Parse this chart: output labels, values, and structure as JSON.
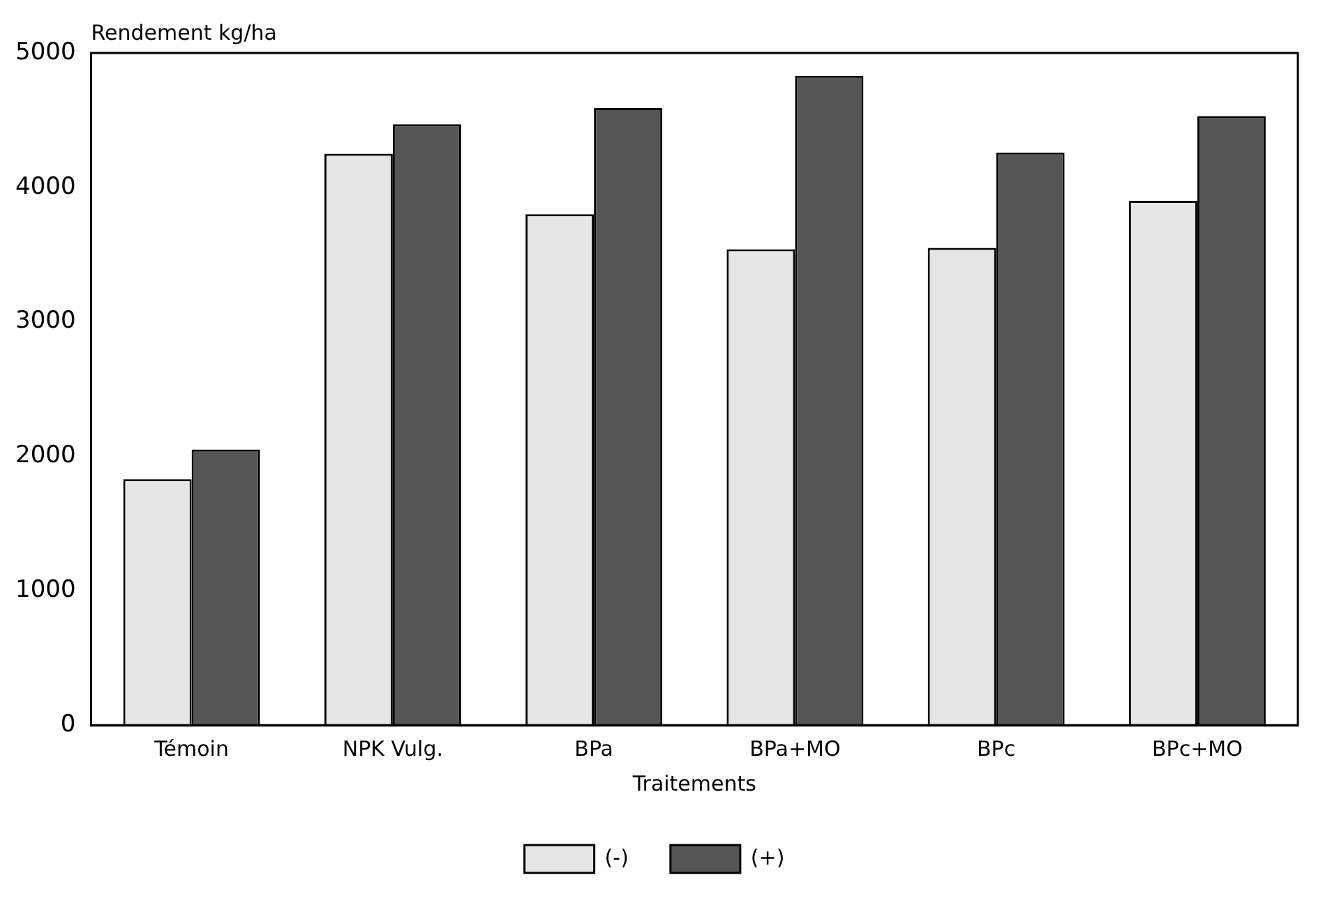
{
  "chart_data": {
    "type": "bar",
    "ylabel": "Rendement kg/ha",
    "xlabel": "Traitements",
    "categories": [
      "Témoin",
      "NPK Vulg.",
      "BPa",
      "BPa+MO",
      "BPc",
      "BPc+MO"
    ],
    "series": [
      {
        "name": "(-)",
        "color": "#e6e6e6",
        "values": [
          1830,
          4250,
          3800,
          3540,
          3550,
          3900
        ]
      },
      {
        "name": "(+)",
        "color": "#555555",
        "values": [
          2050,
          4470,
          4590,
          4830,
          4260,
          4530
        ]
      }
    ],
    "ylim": [
      0,
      5000
    ],
    "yticks": [
      0,
      1000,
      2000,
      3000,
      4000,
      5000
    ],
    "grid": false,
    "legend": "bottom"
  }
}
